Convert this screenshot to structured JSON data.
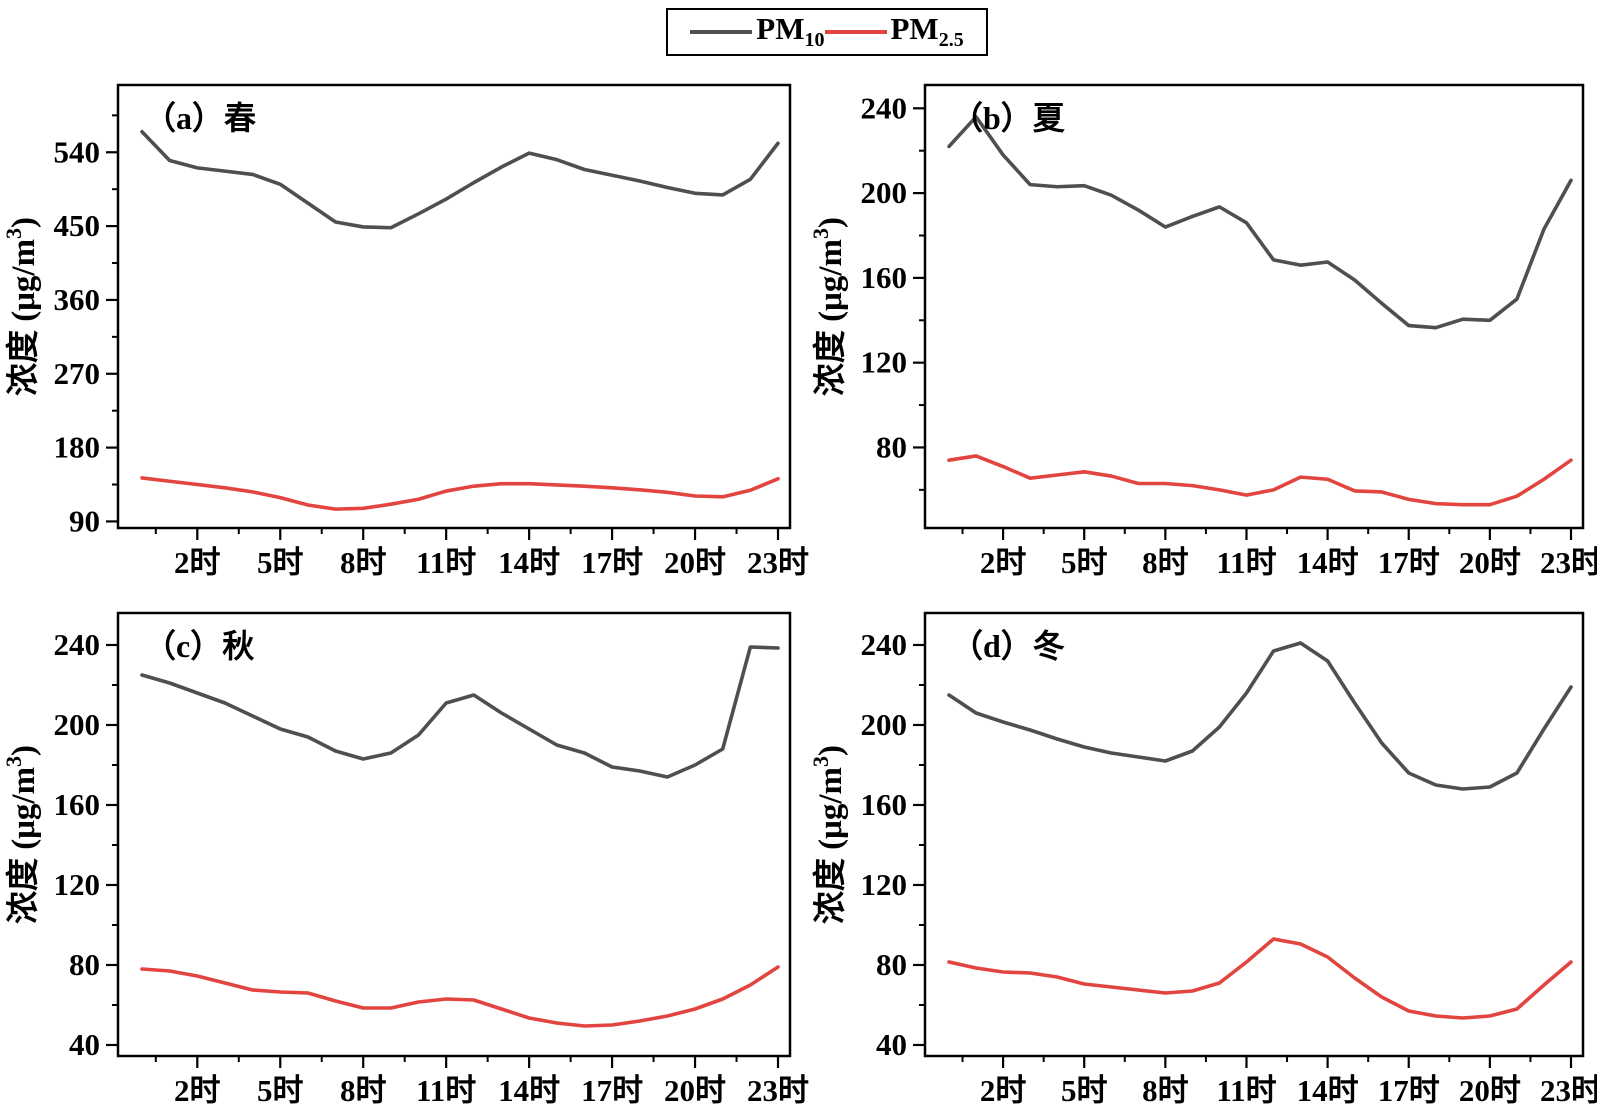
{
  "figure": {
    "background": "#ffffff",
    "pm10_color": "#4f4f4f",
    "pm25_color": "#e2453f"
  },
  "legend": {
    "items": [
      {
        "name": "pm10",
        "label": "PM",
        "sub": "10",
        "color": "#4f4f4f"
      },
      {
        "name": "pm2.5",
        "label": "PM",
        "sub": "2.5",
        "color": "#e2453f"
      }
    ]
  },
  "chart_data": [
    {
      "type": "line",
      "panel_label": "（a）春",
      "ylabel": {
        "main": "浓度 (μg/m",
        "sup": "3",
        "end": ")"
      },
      "x_tick_hours": [
        2,
        5,
        8,
        11,
        14,
        17,
        20,
        23
      ],
      "x_tick_labels": [
        "2时",
        "5时",
        "8时",
        "11时",
        "14时",
        "17时",
        "20时",
        "23时"
      ],
      "x_minor_tick_hours": [
        0.5,
        3.5,
        6.5,
        9.5,
        12.5,
        15.5,
        18.5,
        21.5
      ],
      "y_ticks": [
        90,
        180,
        270,
        360,
        450,
        540
      ],
      "y_minor_ticks": [
        135,
        225,
        315,
        405,
        495,
        585
      ],
      "ylim": [
        82,
        622
      ],
      "x_hours": [
        0,
        1,
        2,
        3,
        4,
        5,
        6,
        7,
        8,
        9,
        10,
        11,
        12,
        13,
        14,
        15,
        16,
        17,
        18,
        19,
        20,
        21,
        22,
        23
      ],
      "series": [
        {
          "name": "PM10",
          "color": "#4f4f4f",
          "values": [
            565,
            530,
            521,
            517,
            513,
            501,
            478,
            455,
            449,
            448,
            465,
            483,
            503,
            522,
            539,
            531,
            519,
            512,
            505,
            497,
            490,
            488,
            507,
            551
          ]
        },
        {
          "name": "PM2.5",
          "color": "#e2453f",
          "values": [
            143,
            139,
            135,
            131,
            126,
            119,
            110,
            105,
            106,
            111,
            117,
            127,
            133,
            136,
            136,
            134.5,
            133,
            131,
            128.5,
            125.5,
            121,
            120,
            128,
            142
          ]
        }
      ]
    },
    {
      "type": "line",
      "panel_label": "（b）夏",
      "ylabel": {
        "main": "浓度 (μg/m",
        "sup": "3",
        "end": ")"
      },
      "x_tick_hours": [
        2,
        5,
        8,
        11,
        14,
        17,
        20,
        23
      ],
      "x_tick_labels": [
        "2时",
        "5时",
        "8时",
        "11时",
        "14时",
        "17时",
        "20时",
        "23时"
      ],
      "x_minor_tick_hours": [
        0.5,
        3.5,
        6.5,
        9.5,
        12.5,
        15.5,
        18.5,
        21.5
      ],
      "y_ticks": [
        80,
        120,
        160,
        200,
        240
      ],
      "y_minor_ticks": [
        60,
        100,
        140,
        180,
        220
      ],
      "ylim": [
        42,
        251
      ],
      "x_hours": [
        0,
        1,
        2,
        3,
        4,
        5,
        6,
        7,
        8,
        9,
        10,
        11,
        12,
        13,
        14,
        15,
        16,
        17,
        18,
        19,
        20,
        21,
        22,
        23
      ],
      "series": [
        {
          "name": "PM10",
          "color": "#4f4f4f",
          "values": [
            222,
            236,
            218,
            204,
            203,
            203.5,
            199,
            192,
            184,
            189,
            193.5,
            186,
            168.5,
            166,
            167.5,
            159,
            148,
            137.5,
            136.5,
            140.5,
            140,
            150,
            183,
            206
          ]
        },
        {
          "name": "PM2.5",
          "color": "#e2453f",
          "values": [
            74,
            76,
            71,
            65.5,
            67,
            68.5,
            66.5,
            63,
            63,
            62,
            60,
            57.5,
            60,
            66,
            65,
            59.5,
            59,
            55.5,
            53.5,
            53,
            53,
            57,
            65,
            74
          ]
        }
      ]
    },
    {
      "type": "line",
      "panel_label": "（c）秋",
      "ylabel": {
        "main": "浓度 (μg/m",
        "sup": "3",
        "end": ")"
      },
      "x_tick_hours": [
        2,
        5,
        8,
        11,
        14,
        17,
        20,
        23
      ],
      "x_tick_labels": [
        "2时",
        "5时",
        "8时",
        "11时",
        "14时",
        "17时",
        "20时",
        "23时"
      ],
      "x_minor_tick_hours": [
        0.5,
        3.5,
        6.5,
        9.5,
        12.5,
        15.5,
        18.5,
        21.5
      ],
      "y_ticks": [
        40,
        80,
        120,
        160,
        200,
        240
      ],
      "y_minor_ticks": [
        60,
        100,
        140,
        180,
        220
      ],
      "ylim": [
        34.5,
        256
      ],
      "x_hours": [
        0,
        1,
        2,
        3,
        4,
        5,
        6,
        7,
        8,
        9,
        10,
        11,
        12,
        13,
        14,
        15,
        16,
        17,
        18,
        19,
        20,
        21,
        22,
        23
      ],
      "series": [
        {
          "name": "PM10",
          "color": "#4f4f4f",
          "values": [
            225,
            221,
            216,
            211,
            204.5,
            198,
            194,
            187,
            183,
            186,
            195,
            211,
            215,
            206,
            198,
            190,
            186,
            179,
            177,
            174,
            180,
            188,
            239,
            238.5
          ]
        },
        {
          "name": "PM2.5",
          "color": "#e2453f",
          "values": [
            78,
            77,
            74.5,
            71,
            67.5,
            66.5,
            66,
            62,
            58.5,
            58.5,
            61.5,
            63,
            62.5,
            58,
            53.5,
            51,
            49.5,
            50,
            52,
            54.5,
            58,
            63,
            70,
            79
          ]
        }
      ]
    },
    {
      "type": "line",
      "panel_label": "（d）冬",
      "ylabel": {
        "main": "浓度 (μg/m",
        "sup": "3",
        "end": ")"
      },
      "x_tick_hours": [
        2,
        5,
        8,
        11,
        14,
        17,
        20,
        23
      ],
      "x_tick_labels": [
        "2时",
        "5时",
        "8时",
        "11时",
        "14时",
        "17时",
        "20时",
        "23时"
      ],
      "x_minor_tick_hours": [
        0.5,
        3.5,
        6.5,
        9.5,
        12.5,
        15.5,
        18.5,
        21.5
      ],
      "y_ticks": [
        40,
        80,
        120,
        160,
        200,
        240
      ],
      "y_minor_ticks": [
        60,
        100,
        140,
        180,
        220
      ],
      "ylim": [
        34.5,
        256
      ],
      "x_hours": [
        0,
        1,
        2,
        3,
        4,
        5,
        6,
        7,
        8,
        9,
        10,
        11,
        12,
        13,
        14,
        15,
        16,
        17,
        18,
        19,
        20,
        21,
        22,
        23
      ],
      "series": [
        {
          "name": "PM10",
          "color": "#4f4f4f",
          "values": [
            215,
            206,
            201.5,
            197.5,
            193,
            189,
            186,
            184,
            182,
            187,
            199,
            216,
            237,
            241,
            232,
            211,
            191,
            176,
            170,
            168,
            169,
            176,
            198,
            219
          ]
        },
        {
          "name": "PM2.5",
          "color": "#e2453f",
          "values": [
            81.5,
            78.5,
            76.5,
            76,
            74,
            70.5,
            69,
            67.5,
            66,
            67,
            71,
            81.5,
            93,
            90.5,
            84,
            73.5,
            64,
            57,
            54.5,
            53.5,
            54.5,
            58,
            70,
            81.5
          ]
        }
      ]
    }
  ]
}
